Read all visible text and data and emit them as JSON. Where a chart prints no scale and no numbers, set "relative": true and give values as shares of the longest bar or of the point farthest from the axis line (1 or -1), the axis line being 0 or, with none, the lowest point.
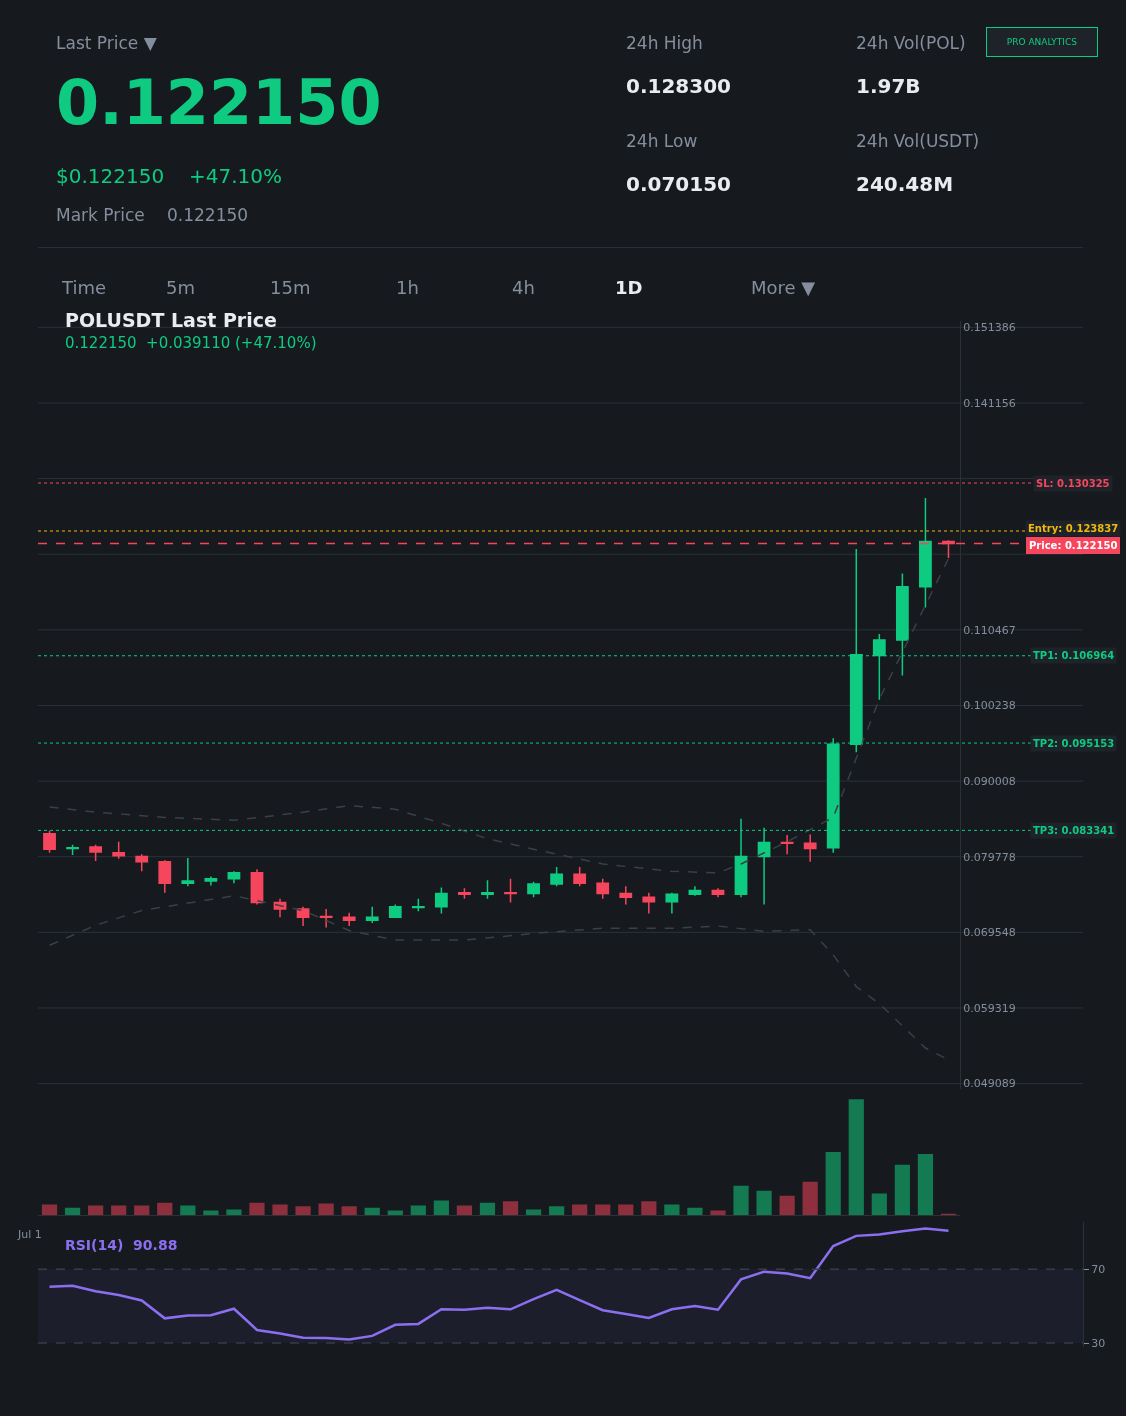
{
  "chart_data": [
    {
      "type": "candlestick",
      "title": "POLUSDT Last Price",
      "subtitle": "0.122150  +0.039110 (+47.10%)",
      "categories": [
        null,
        null,
        null,
        null,
        null,
        null,
        null,
        null,
        null,
        null,
        null,
        null,
        null,
        null,
        null,
        null,
        null,
        null,
        null,
        null,
        null,
        null,
        null,
        null,
        null,
        null,
        null,
        null,
        null,
        null,
        null,
        null,
        null,
        null,
        null,
        null,
        null,
        null,
        null,
        null
      ],
      "ohlc": [
        [
          0.0829,
          0.0833,
          0.0803,
          0.0808
        ],
        [
          0.0809,
          0.0814,
          0.08,
          0.081
        ],
        [
          0.0811,
          0.0814,
          0.0792,
          0.0804
        ],
        [
          0.0803,
          0.0818,
          0.0795,
          0.0799
        ],
        [
          0.0798,
          0.0801,
          0.0778,
          0.0791
        ],
        [
          0.0791,
          0.0793,
          0.0749,
          0.0762
        ],
        [
          0.0762,
          0.0796,
          0.0758,
          0.0765
        ],
        [
          0.0765,
          0.0771,
          0.0759,
          0.0768
        ],
        [
          0.0768,
          0.0778,
          0.0762,
          0.0776
        ],
        [
          0.0776,
          0.0781,
          0.0733,
          0.0736
        ],
        [
          0.0736,
          0.0741,
          0.0716,
          0.0727
        ],
        [
          0.0727,
          0.073,
          0.0704,
          0.0716
        ],
        [
          0.0717,
          0.0727,
          0.0702,
          0.0716
        ],
        [
          0.0716,
          0.0722,
          0.0704,
          0.0712
        ],
        [
          0.0712,
          0.073,
          0.0708,
          0.0716
        ],
        [
          0.0716,
          0.0733,
          0.0715,
          0.073
        ],
        [
          0.0729,
          0.0741,
          0.0724,
          0.073
        ],
        [
          0.073,
          0.0756,
          0.0721,
          0.0748
        ],
        [
          0.0749,
          0.0755,
          0.0741,
          0.0747
        ],
        [
          0.0747,
          0.0766,
          0.0741,
          0.0749
        ],
        [
          0.0749,
          0.0768,
          0.0736,
          0.0748
        ],
        [
          0.0748,
          0.0764,
          0.0743,
          0.0761
        ],
        [
          0.0761,
          0.0784,
          0.0758,
          0.0774
        ],
        [
          0.0774,
          0.0784,
          0.0758,
          0.0762
        ],
        [
          0.0762,
          0.0768,
          0.0741,
          0.0748
        ],
        [
          0.0748,
          0.0758,
          0.0733,
          0.0743
        ],
        [
          0.0743,
          0.0749,
          0.0721,
          0.0737
        ],
        [
          0.0737,
          0.0749,
          0.0721,
          0.0747
        ],
        [
          0.0747,
          0.0758,
          0.0745,
          0.0752
        ],
        [
          0.0752,
          0.0755,
          0.0743,
          0.0747
        ],
        [
          0.0747,
          0.0849,
          0.0743,
          0.0798
        ],
        [
          0.0798,
          0.0837,
          0.0733,
          0.0817
        ],
        [
          0.0817,
          0.0827,
          0.0801,
          0.0816
        ],
        [
          0.0816,
          0.0828,
          0.0791,
          0.0809
        ],
        [
          0.081,
          0.0958,
          0.0803,
          0.095
        ],
        [
          0.095,
          0.1214,
          0.0939,
          0.1071
        ],
        [
          0.107,
          0.1099,
          0.101,
          0.1091
        ],
        [
          0.1091,
          0.1181,
          0.1043,
          0.1163
        ],
        [
          0.1163,
          0.1283,
          0.1135,
          0.1224
        ],
        [
          0.1224,
          0.1226,
          0.1202,
          0.12215
        ]
      ],
      "series": [
        {
          "type": "line",
          "color": "#3a3f48",
          "line_style": "dashed",
          "values": [
            0.0865,
            null,
            0.0858,
            null,
            null,
            0.0851,
            null,
            null,
            0.0847,
            null,
            null,
            0.0858,
            null,
            0.0867,
            null,
            0.0862,
            null,
            0.0843,
            null,
            0.0822,
            null,
            0.0808,
            null,
            null,
            0.0788,
            null,
            null,
            0.0778,
            null,
            0.0776,
            0.0788,
            null,
            0.0818,
            null,
            0.0851,
            null,
            0.1011,
            null,
            0.1138,
            0.1201
          ]
        },
        {
          "type": "line",
          "color": "#3a3f48",
          "line_style": "dashed",
          "values": [
            0.0678,
            null,
            0.0705,
            null,
            0.0725,
            null,
            null,
            null,
            0.0745,
            null,
            null,
            0.0725,
            null,
            0.0698,
            null,
            0.0685,
            null,
            null,
            0.0685,
            null,
            null,
            0.0694,
            null,
            null,
            0.0701,
            null,
            null,
            0.0701,
            null,
            0.0704,
            null,
            0.0697,
            null,
            0.0699,
            0.0665,
            0.0622,
            0.0599,
            null,
            0.0539,
            0.0523
          ]
        }
      ],
      "ylim": [
        0.0484,
        0.1522
      ],
      "yticks": [
        0.151386,
        0.141156,
        {
          "value": 0.130926,
          "label": null
        },
        {
          "value": 0.120696,
          "label": null
        },
        0.110467,
        0.100238,
        0.090008,
        0.079778,
        0.069548,
        0.059319,
        0.049089
      ],
      "grid": "y",
      "tick_labels": "y",
      "ref_lines": [
        {
          "axis": "y",
          "value": 0.130325,
          "label": "SL: 0.130325",
          "color": "#f6465d",
          "line_style": "dotted"
        },
        {
          "axis": "y",
          "value": 0.123837,
          "label": "Entry: 0.123837",
          "color": "#f0b90b",
          "line_style": "dotted"
        },
        {
          "axis": "y",
          "value": 0.12215,
          "label": "Price: 0.122150",
          "color": "#f6465d",
          "line_style": "dashed"
        },
        {
          "axis": "y",
          "value": 0.106964,
          "label": "TP1: 0.106964",
          "color": "#0ecb81",
          "line_style": "dotted"
        },
        {
          "axis": "y",
          "value": 0.095153,
          "label": "TP2: 0.095153",
          "color": "#0ecb81",
          "line_style": "dotted"
        },
        {
          "axis": "y",
          "value": 0.083341,
          "label": "TP3: 0.083341",
          "color": "#0ecb81",
          "line_style": "dotted"
        }
      ]
    },
    {
      "type": "bar",
      "relative": true,
      "tick_labels": false,
      "annotations": [
        "Jul 1"
      ],
      "categories": [
        null,
        null,
        null,
        null,
        null,
        null,
        null,
        null,
        null,
        null,
        null,
        null,
        null,
        null,
        null,
        null,
        null,
        null,
        null,
        null,
        null,
        null,
        null,
        null,
        null,
        null,
        null,
        null,
        null,
        null,
        null,
        null,
        null,
        null,
        null,
        null,
        null,
        null,
        null,
        null
      ],
      "values": [
        0.094,
        0.067,
        0.086,
        0.086,
        0.086,
        0.11,
        0.086,
        0.043,
        0.051,
        0.11,
        0.094,
        0.078,
        0.102,
        0.078,
        0.067,
        0.043,
        0.086,
        0.129,
        0.086,
        0.11,
        0.122,
        0.051,
        0.078,
        0.094,
        0.094,
        0.094,
        0.122,
        0.094,
        0.067,
        0.043,
        0.255,
        0.212,
        0.169,
        0.29,
        0.545,
        1,
        0.188,
        0.435,
        0.529,
        0.008
      ],
      "colors": [
        "#8e2f3d",
        "#137a52",
        "#8e2f3d",
        "#8e2f3d",
        "#8e2f3d",
        "#8e2f3d",
        "#137a52",
        "#137a52",
        "#137a52",
        "#8e2f3d",
        "#8e2f3d",
        "#8e2f3d",
        "#8e2f3d",
        "#8e2f3d",
        "#137a52",
        "#137a52",
        "#137a52",
        "#137a52",
        "#8e2f3d",
        "#137a52",
        "#8e2f3d",
        "#137a52",
        "#137a52",
        "#8e2f3d",
        "#8e2f3d",
        "#8e2f3d",
        "#8e2f3d",
        "#137a52",
        "#137a52",
        "#8e2f3d",
        "#137a52",
        "#137a52",
        "#8e2f3d",
        "#8e2f3d",
        "#137a52",
        "#137a52",
        "#137a52",
        "#137a52",
        "#137a52",
        "#8e2f3d"
      ]
    },
    {
      "type": "line",
      "title": "RSI(14)  90.88",
      "color": "#8b6ff0",
      "tick_labels": "y",
      "categories": [
        null,
        null,
        null,
        null,
        null,
        null,
        null,
        null,
        null,
        null,
        null,
        null,
        null,
        null,
        null,
        null,
        null,
        null,
        null,
        null,
        null,
        null,
        null,
        null,
        null,
        null,
        null,
        null,
        null,
        null,
        null,
        null,
        null,
        null,
        null,
        null,
        null,
        null,
        null,
        null
      ],
      "values": [
        60.5,
        61.0,
        58.1,
        56.1,
        53.1,
        43.4,
        44.9,
        45.1,
        48.6,
        37.1,
        35.2,
        32.9,
        32.7,
        31.9,
        33.9,
        39.9,
        40.4,
        48.3,
        48.1,
        49.1,
        48.3,
        53.8,
        58.8,
        53.3,
        47.8,
        45.8,
        43.6,
        48.3,
        50.1,
        48.1,
        64.5,
        68.7,
        67.7,
        65.2,
        82.6,
        88.1,
        88.9,
        90.6,
        92.1,
        90.88
      ],
      "ylim": [
        27.8,
        95.4
      ],
      "yticks": [
        30,
        70
      ],
      "bands": [
        {
          "axis": "y",
          "from": 30,
          "to": 70,
          "color": "#1c1f2b"
        }
      ],
      "ref_lines": [
        {
          "axis": "y",
          "value": 70,
          "color": "#363c4a",
          "line_style": "dashed"
        },
        {
          "axis": "y",
          "value": 30,
          "color": "#363c4a",
          "line_style": "dashed"
        }
      ]
    },
    {
      "type": "other",
      "annotations": [
        "Last Price ▼",
        "0.122150",
        "$0.122150",
        "+47.10%",
        "Mark Price",
        "0.122150",
        "24h High",
        "0.128300",
        "24h Vol(POL)",
        "1.97B",
        "24h Low",
        "0.070150",
        "24h Vol(USDT)",
        "240.48M",
        "PRO ANALYTICS",
        "Time",
        "5m",
        "15m",
        "1h",
        "4h",
        "1D",
        "More ▼"
      ]
    }
  ]
}
